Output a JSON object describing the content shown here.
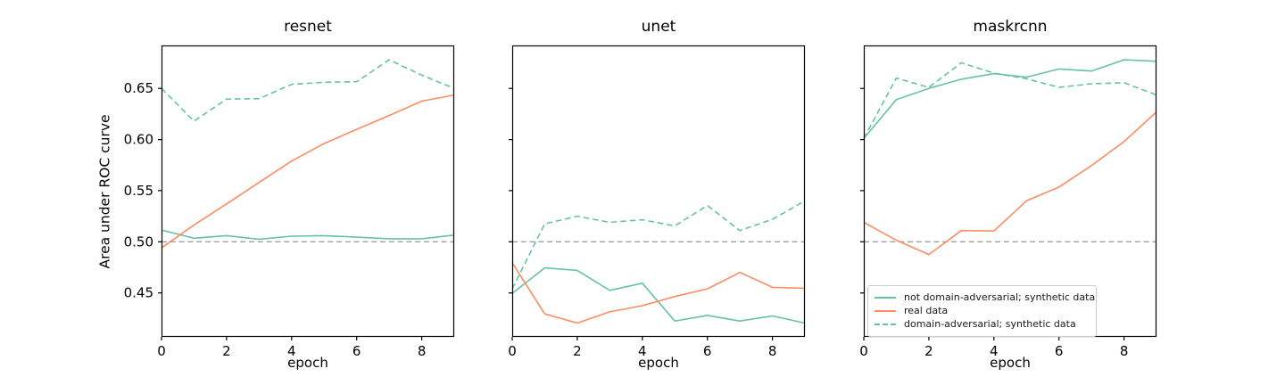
{
  "figure": {
    "ylabel": "Area under ROC curve",
    "xlabel": "epoch",
    "colors": {
      "synthetic_teal": "#66c2a5",
      "real_orange": "#fc8d62",
      "baseline_gray": "#a0a0a0",
      "axis_black": "#000000"
    },
    "legend": {
      "entries": [
        {
          "label": "not domain-adversarial; synthetic data",
          "line_style": "solid",
          "color": "#66c2a5"
        },
        {
          "label": "real data",
          "line_style": "solid",
          "color": "#fc8d62"
        },
        {
          "label": "domain-adversarial; synthetic data",
          "line_style": "dashed",
          "color": "#66c2a5"
        }
      ]
    }
  },
  "chart_data": [
    {
      "type": "line",
      "title": "resnet",
      "xlabel": "epoch",
      "ylabel": "Area under ROC curve",
      "x": [
        0,
        1,
        2,
        3,
        4,
        5,
        6,
        7,
        8,
        9
      ],
      "xlim": [
        0,
        9
      ],
      "ylim": [
        0.407,
        0.692
      ],
      "xticks": [
        0,
        2,
        4,
        6,
        8
      ],
      "xtick_labels": [
        "0",
        "2",
        "4",
        "6",
        "8"
      ],
      "yticks": [
        0.45,
        0.5,
        0.55,
        0.6,
        0.65
      ],
      "ytick_labels": [
        "0.45",
        "0.50",
        "0.55",
        "0.60",
        "0.65"
      ],
      "show_ytick_labels": true,
      "baseline": {
        "value": 0.5,
        "color": "#a0a0a0",
        "style": "dashed"
      },
      "grid": false,
      "series": [
        {
          "id": "synthetic",
          "name": "not domain-adversarial; synthetic data",
          "style": "solid",
          "color": "#66c2a5",
          "values": [
            0.5115,
            0.5035,
            0.506,
            0.5025,
            0.5055,
            0.506,
            0.5045,
            0.503,
            0.503,
            0.5065
          ]
        },
        {
          "id": "real",
          "name": "real data",
          "style": "solid",
          "color": "#fc8d62",
          "values": [
            0.494,
            0.5165,
            0.537,
            0.558,
            0.579,
            0.596,
            0.61,
            0.6235,
            0.6375,
            0.6435
          ]
        },
        {
          "id": "adversarial",
          "name": "domain-adversarial; synthetic data",
          "style": "dashed",
          "color": "#66c2a5",
          "values": [
            0.65,
            0.618,
            0.6395,
            0.64,
            0.654,
            0.656,
            0.6565,
            0.678,
            0.663,
            0.65
          ]
        }
      ]
    },
    {
      "type": "line",
      "title": "unet",
      "xlabel": "epoch",
      "ylabel": "Area under ROC curve",
      "x": [
        0,
        1,
        2,
        3,
        4,
        5,
        6,
        7,
        8,
        9
      ],
      "xlim": [
        0,
        9
      ],
      "ylim": [
        0.407,
        0.692
      ],
      "xticks": [
        0,
        2,
        4,
        6,
        8
      ],
      "xtick_labels": [
        "0",
        "2",
        "4",
        "6",
        "8"
      ],
      "yticks": [
        0.45,
        0.5,
        0.55,
        0.6,
        0.65
      ],
      "ytick_labels": [
        "0.45",
        "0.50",
        "0.55",
        "0.60",
        "0.65"
      ],
      "show_ytick_labels": false,
      "baseline": {
        "value": 0.5,
        "color": "#a0a0a0",
        "style": "dashed"
      },
      "grid": false,
      "series": [
        {
          "id": "synthetic",
          "name": "not domain-adversarial; synthetic data",
          "style": "solid",
          "color": "#66c2a5",
          "values": [
            0.4495,
            0.4745,
            0.472,
            0.4525,
            0.4595,
            0.4225,
            0.428,
            0.4225,
            0.4275,
            0.4205
          ]
        },
        {
          "id": "real",
          "name": "real data",
          "style": "solid",
          "color": "#fc8d62",
          "values": [
            0.4795,
            0.4295,
            0.4205,
            0.4315,
            0.4375,
            0.4465,
            0.454,
            0.47,
            0.4555,
            0.4545
          ]
        },
        {
          "id": "adversarial",
          "name": "domain-adversarial; synthetic data",
          "style": "dashed",
          "color": "#66c2a5",
          "values": [
            0.454,
            0.5175,
            0.525,
            0.519,
            0.5215,
            0.5155,
            0.5355,
            0.511,
            0.522,
            0.54
          ]
        }
      ]
    },
    {
      "type": "line",
      "title": "maskrcnn",
      "xlabel": "epoch",
      "ylabel": "Area under ROC curve",
      "x": [
        0,
        1,
        2,
        3,
        4,
        5,
        6,
        7,
        8,
        9
      ],
      "xlim": [
        0,
        9
      ],
      "ylim": [
        0.407,
        0.692
      ],
      "xticks": [
        0,
        2,
        4,
        6,
        8
      ],
      "xtick_labels": [
        "0",
        "2",
        "4",
        "6",
        "8"
      ],
      "yticks": [
        0.45,
        0.5,
        0.55,
        0.6,
        0.65
      ],
      "ytick_labels": [
        "0.45",
        "0.50",
        "0.55",
        "0.60",
        "0.65"
      ],
      "show_ytick_labels": false,
      "baseline": {
        "value": 0.5,
        "color": "#a0a0a0",
        "style": "dashed"
      },
      "grid": false,
      "legend_position": "lower left",
      "series": [
        {
          "id": "synthetic",
          "name": "not domain-adversarial; synthetic data",
          "style": "solid",
          "color": "#66c2a5",
          "values": [
            0.601,
            0.639,
            0.65,
            0.659,
            0.6645,
            0.661,
            0.669,
            0.667,
            0.678,
            0.6765
          ]
        },
        {
          "id": "real",
          "name": "real data",
          "style": "solid",
          "color": "#fc8d62",
          "values": [
            0.519,
            0.5015,
            0.4875,
            0.511,
            0.5105,
            0.54,
            0.5535,
            0.5745,
            0.598,
            0.627
          ]
        },
        {
          "id": "adversarial",
          "name": "domain-adversarial; synthetic data",
          "style": "dashed",
          "color": "#66c2a5",
          "values": [
            0.601,
            0.66,
            0.651,
            0.675,
            0.665,
            0.6595,
            0.651,
            0.6545,
            0.6555,
            0.6435
          ]
        }
      ]
    }
  ]
}
